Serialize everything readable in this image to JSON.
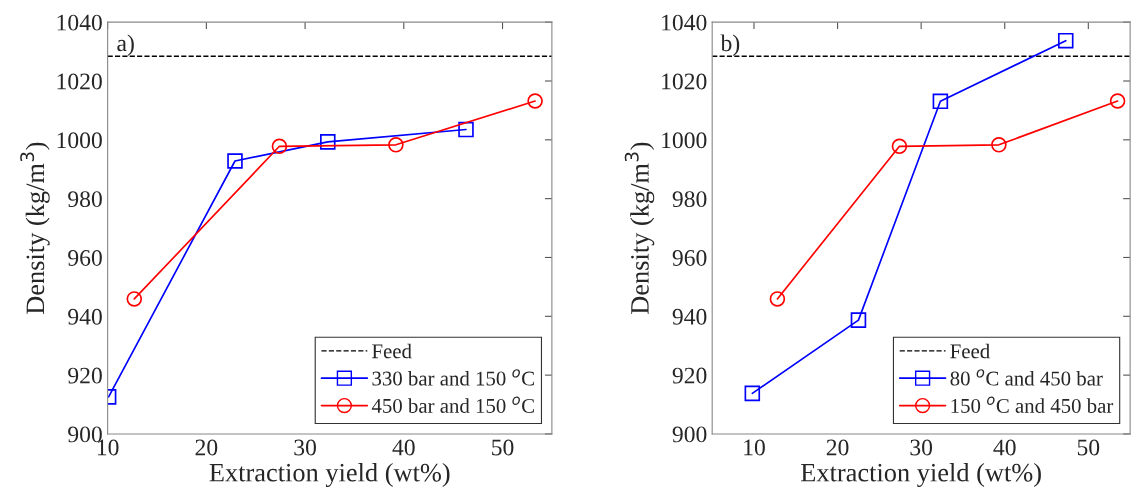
{
  "chart_data": [
    {
      "type": "line",
      "xlabel": "Extraction yield (wt%)",
      "ylabel": "Density (kg/m$^{3}$)",
      "annotations": [
        "a)"
      ],
      "xlim": [
        10,
        55
      ],
      "xticks": [
        10,
        20,
        30,
        40,
        50
      ],
      "ylim": [
        900,
        1040
      ],
      "yticks": [
        900,
        920,
        940,
        960,
        980,
        1000,
        1020,
        1040
      ],
      "grid": false,
      "legend": "bottom right",
      "ref_lines": [
        {
          "axis": "y",
          "value": 1028.4,
          "label": "Feed",
          "color": "#000000",
          "line_style": "dashed"
        }
      ],
      "series": [
        {
          "name": "330 bar and 150 $^{o}$C",
          "color": "#0000ff",
          "marker": "square",
          "x": [
            10.1,
            22.9,
            32.3,
            46.3
          ],
          "values": [
            912.6,
            992.8,
            999.3,
            1003.5
          ]
        },
        {
          "name": "450 bar and 150 $^{o}$C",
          "color": "#ff0000",
          "marker": "circle",
          "x": [
            12.7,
            27.4,
            39.2,
            53.3
          ],
          "values": [
            945.9,
            997.8,
            998.3,
            1013.2
          ]
        }
      ]
    },
    {
      "type": "line",
      "xlabel": "Extraction yield (wt%)",
      "ylabel": "Density (kg/m$^{3}$)",
      "annotations": [
        "b)"
      ],
      "xlim": [
        5,
        55
      ],
      "xticks": [
        10,
        20,
        30,
        40,
        50
      ],
      "ylim": [
        900,
        1040
      ],
      "yticks": [
        900,
        920,
        940,
        960,
        980,
        1000,
        1020,
        1040
      ],
      "grid": false,
      "legend": "bottom right",
      "ref_lines": [
        {
          "axis": "y",
          "value": 1028.4,
          "label": "Feed",
          "color": "#000000",
          "line_style": "dashed"
        }
      ],
      "series": [
        {
          "name": "80 $^{o}$C and 450 bar",
          "color": "#0000ff",
          "marker": "square",
          "x": [
            9.8,
            22.5,
            32.3,
            47.3
          ],
          "values": [
            913.8,
            938.7,
            1013.1,
            1033.7
          ]
        },
        {
          "name": "150 $^{o}$C and 450 bar",
          "color": "#ff0000",
          "marker": "circle",
          "x": [
            12.8,
            27.4,
            39.3,
            53.5
          ],
          "values": [
            945.9,
            997.8,
            998.3,
            1013.2
          ]
        }
      ]
    }
  ]
}
